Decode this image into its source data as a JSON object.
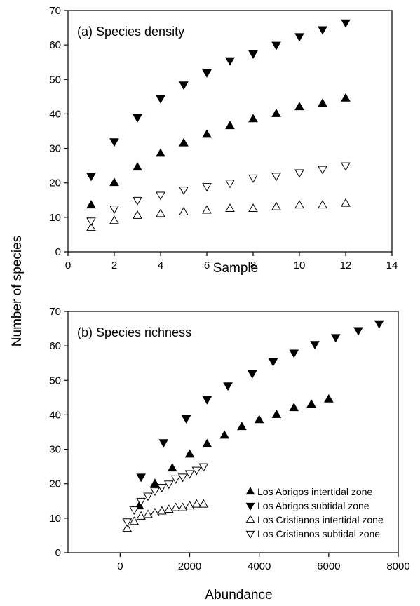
{
  "figure": {
    "ylabel": "Number of species"
  },
  "legend": {
    "entries": [
      {
        "label": "Los Abrigos intertidal zone",
        "marker": "triangle-up",
        "filled": true
      },
      {
        "label": "Los Abrigos subtidal zone",
        "marker": "triangle-down",
        "filled": true
      },
      {
        "label": "Los Cristianos intertidal zone",
        "marker": "triangle-up",
        "filled": false
      },
      {
        "label": "Los Cristianos subtidal zone",
        "marker": "triangle-down",
        "filled": false
      }
    ],
    "placement": "bottom-right of panel (b)"
  },
  "chart_data": [
    {
      "type": "scatter",
      "title": "(a) Species density",
      "xlabel": "Sample",
      "ylabel": "Number of species",
      "xlim": [
        0,
        14
      ],
      "ylim": [
        0,
        70
      ],
      "xticks": [
        0,
        2,
        4,
        6,
        8,
        10,
        12,
        14
      ],
      "yticks": [
        0,
        10,
        20,
        30,
        40,
        50,
        60,
        70
      ],
      "grid": false,
      "series": [
        {
          "name": "Los Abrigos intertidal zone",
          "marker": "triangle-up",
          "filled": true,
          "x": [
            1,
            2,
            3,
            4,
            5,
            6,
            7,
            8,
            9,
            10,
            11,
            12
          ],
          "y": [
            13.5,
            20,
            24.5,
            28.5,
            31.5,
            34,
            36.5,
            38.5,
            40,
            42,
            43,
            44.5
          ]
        },
        {
          "name": "Los Abrigos subtidal zone",
          "marker": "triangle-down",
          "filled": true,
          "x": [
            1,
            2,
            3,
            4,
            5,
            6,
            7,
            8,
            9,
            10,
            11,
            12
          ],
          "y": [
            22,
            32,
            39,
            44.5,
            48.5,
            52,
            55.5,
            57.5,
            60,
            62.5,
            64.5,
            66.5
          ]
        },
        {
          "name": "Los Cristianos intertidal zone",
          "marker": "triangle-up",
          "filled": false,
          "x": [
            1,
            2,
            3,
            4,
            5,
            6,
            7,
            8,
            9,
            10,
            11,
            12
          ],
          "y": [
            7,
            9,
            10.5,
            11,
            11.5,
            12,
            12.5,
            12.5,
            13,
            13.5,
            13.5,
            14
          ]
        },
        {
          "name": "Los Cristianos subtidal zone",
          "marker": "triangle-down",
          "filled": false,
          "x": [
            1,
            2,
            3,
            4,
            5,
            6,
            7,
            8,
            9,
            10,
            11,
            12
          ],
          "y": [
            9,
            12.5,
            15,
            16.5,
            18,
            19,
            20,
            21.5,
            22,
            23,
            24,
            25
          ]
        }
      ]
    },
    {
      "type": "scatter",
      "title": "(b) Species richness",
      "xlabel": "Abundance",
      "ylabel": "Number of species",
      "xlim": [
        -1500,
        8000
      ],
      "ylim": [
        0,
        70
      ],
      "xticks": [
        0,
        2000,
        4000,
        6000,
        8000
      ],
      "yticks": [
        0,
        10,
        20,
        30,
        40,
        50,
        60,
        70
      ],
      "grid": false,
      "series": [
        {
          "name": "Los Abrigos intertidal zone",
          "marker": "triangle-up",
          "filled": true,
          "x": [
            550,
            1000,
            1500,
            2000,
            2500,
            3000,
            3500,
            4000,
            4500,
            5000,
            5500,
            6000
          ],
          "y": [
            13.5,
            20,
            24.5,
            28.5,
            31.5,
            34,
            36.5,
            38.5,
            40,
            42,
            43,
            44.5
          ]
        },
        {
          "name": "Los Abrigos subtidal zone",
          "marker": "triangle-down",
          "filled": true,
          "x": [
            600,
            1250,
            1900,
            2500,
            3100,
            3800,
            4400,
            5000,
            5600,
            6200,
            6850,
            7450
          ],
          "y": [
            22,
            32,
            39,
            44.5,
            48.5,
            52,
            55.5,
            58,
            60.5,
            62.5,
            64.5,
            66.5
          ]
        },
        {
          "name": "Los Cristianos intertidal zone",
          "marker": "triangle-up",
          "filled": false,
          "x": [
            200,
            400,
            600,
            800,
            1000,
            1200,
            1400,
            1600,
            1800,
            2000,
            2200,
            2400
          ],
          "y": [
            7,
            9,
            10.5,
            11,
            11.5,
            12,
            12.5,
            13,
            13,
            13.5,
            14,
            14
          ]
        },
        {
          "name": "Los Cristianos subtidal zone",
          "marker": "triangle-down",
          "filled": false,
          "x": [
            200,
            400,
            600,
            800,
            1000,
            1200,
            1400,
            1600,
            1800,
            2000,
            2200,
            2400
          ],
          "y": [
            9,
            12.5,
            15,
            16.5,
            18,
            19,
            20,
            21.5,
            22,
            23,
            24,
            25
          ]
        }
      ]
    }
  ]
}
